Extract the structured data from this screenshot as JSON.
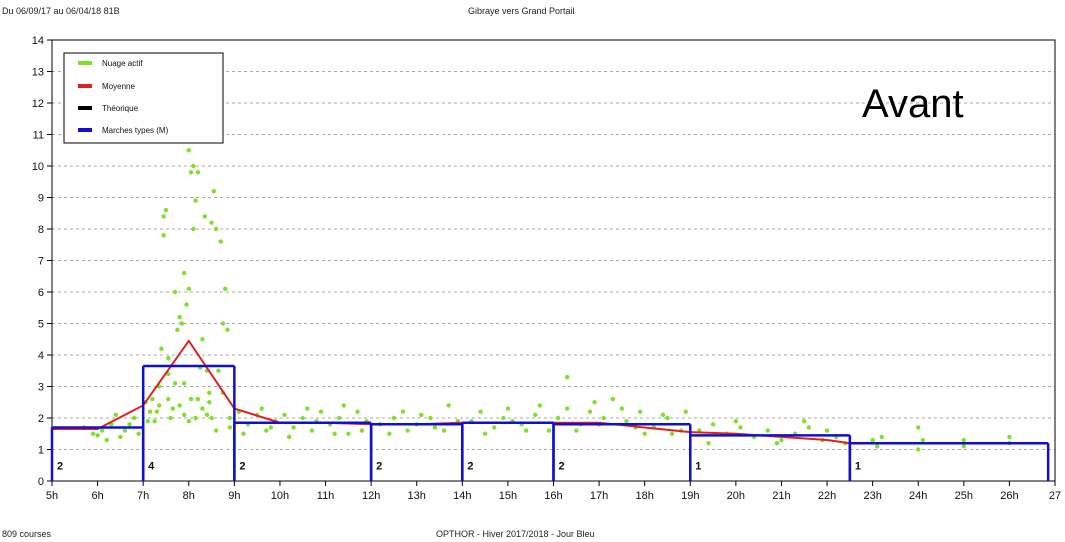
{
  "header": {
    "left": "Du 06/09/17 au 06/04/18 81B",
    "center": "Gibraye vers Grand Portail"
  },
  "footer": {
    "left": "809 courses",
    "center": "OPTHOR - Hiver 2017/2018 - Jour Bleu"
  },
  "annotation": "Avant",
  "colors": {
    "scatter": "#7ee02a",
    "moyenne": "#e02020",
    "theorique": "#000000",
    "marches": "#1010d0"
  },
  "chart_data": {
    "type": "scatter",
    "title": "Gibraye vers Grand Portail",
    "xlim": [
      5,
      27
    ],
    "ylim": [
      0,
      14
    ],
    "x_ticks": [
      "5h",
      "6h",
      "7h",
      "8h",
      "9h",
      "10h",
      "11h",
      "12h",
      "13h",
      "14h",
      "15h",
      "16h",
      "17h",
      "18h",
      "19h",
      "20h",
      "21h",
      "22h",
      "23h",
      "24h",
      "25h",
      "26h",
      "27"
    ],
    "y_ticks": [
      0,
      1,
      2,
      3,
      4,
      5,
      6,
      7,
      8,
      9,
      10,
      11,
      12,
      13,
      14
    ],
    "grid": "horizontal dashed",
    "legend": {
      "placement": "top-left",
      "entries": [
        {
          "label": "Nuage actif",
          "color_key": "scatter"
        },
        {
          "label": "Moyenne",
          "color_key": "moyenne"
        },
        {
          "label": "Théorique",
          "color_key": "theorique"
        },
        {
          "label": "Marches types (M)",
          "color_key": "marches"
        }
      ]
    },
    "series": [
      {
        "name": "Moyenne",
        "x": [
          5.0,
          6.0,
          7.0,
          8.0,
          9.0,
          10.0,
          11.0,
          12.0,
          13.0,
          14.0,
          15.0,
          16.0,
          17.0,
          18.0,
          19.0,
          20.0,
          21.0,
          22.0,
          22.5,
          23.0,
          26.8
        ],
        "y": [
          1.65,
          1.65,
          2.4,
          4.45,
          2.3,
          1.85,
          1.85,
          1.8,
          1.8,
          1.85,
          1.85,
          1.85,
          1.85,
          1.7,
          1.55,
          1.5,
          1.4,
          1.3,
          1.2,
          1.2,
          1.2
        ]
      },
      {
        "name": "Marches types (M)",
        "segments": [
          {
            "x_start": 5.0,
            "x_end": 7.0,
            "y": 1.7,
            "label": "2"
          },
          {
            "x_start": 7.0,
            "x_end": 9.0,
            "y": 3.65,
            "label": "4"
          },
          {
            "x_start": 9.0,
            "x_end": 12.0,
            "y": 1.85,
            "label": "2"
          },
          {
            "x_start": 12.0,
            "x_end": 14.0,
            "y": 1.8,
            "label": "2"
          },
          {
            "x_start": 14.0,
            "x_end": 16.0,
            "y": 1.85,
            "label": "2"
          },
          {
            "x_start": 16.0,
            "x_end": 19.0,
            "y": 1.8,
            "label": "2"
          },
          {
            "x_start": 19.0,
            "x_end": 22.5,
            "y": 1.45,
            "label": "1"
          },
          {
            "x_start": 22.5,
            "x_end": 26.85,
            "y": 1.2,
            "label": "1"
          }
        ]
      },
      {
        "name": "Nuage actif",
        "points": [
          [
            5.7,
            1.7
          ],
          [
            5.9,
            1.5
          ],
          [
            6.1,
            1.6
          ],
          [
            6.3,
            1.8
          ],
          [
            6.5,
            1.4
          ],
          [
            6.6,
            1.6
          ],
          [
            6.8,
            2.0
          ],
          [
            6.9,
            1.5
          ],
          [
            6.4,
            2.1
          ],
          [
            6.2,
            1.3
          ],
          [
            6.7,
            1.8
          ],
          [
            6.0,
            1.45
          ],
          [
            7.1,
            1.9
          ],
          [
            7.15,
            2.2
          ],
          [
            7.2,
            2.6
          ],
          [
            7.3,
            2.2
          ],
          [
            7.35,
            3.0
          ],
          [
            7.4,
            4.2
          ],
          [
            7.45,
            8.4
          ],
          [
            7.5,
            8.6
          ],
          [
            7.45,
            7.8
          ],
          [
            7.55,
            2.6
          ],
          [
            7.6,
            2.0
          ],
          [
            7.55,
            3.9
          ],
          [
            7.7,
            6.0
          ],
          [
            7.75,
            4.8
          ],
          [
            7.8,
            5.2
          ],
          [
            7.85,
            5.0
          ],
          [
            7.8,
            2.4
          ],
          [
            7.9,
            6.6
          ],
          [
            7.9,
            3.1
          ],
          [
            7.95,
            5.6
          ],
          [
            8.0,
            6.1
          ],
          [
            8.0,
            10.5
          ],
          [
            8.05,
            9.8
          ],
          [
            8.05,
            2.6
          ],
          [
            8.1,
            10.0
          ],
          [
            8.1,
            8.0
          ],
          [
            8.15,
            8.9
          ],
          [
            8.15,
            2.0
          ],
          [
            8.2,
            9.8
          ],
          [
            8.25,
            3.6
          ],
          [
            8.3,
            4.5
          ],
          [
            8.3,
            2.3
          ],
          [
            8.35,
            8.4
          ],
          [
            8.4,
            3.5
          ],
          [
            8.45,
            2.5
          ],
          [
            8.5,
            8.2
          ],
          [
            8.5,
            2.0
          ],
          [
            8.55,
            9.2
          ],
          [
            8.6,
            8.0
          ],
          [
            8.65,
            3.5
          ],
          [
            8.7,
            7.6
          ],
          [
            8.75,
            5.0
          ],
          [
            8.75,
            2.8
          ],
          [
            8.8,
            6.1
          ],
          [
            8.85,
            4.8
          ],
          [
            8.9,
            2.0
          ],
          [
            8.9,
            1.7
          ],
          [
            7.65,
            2.3
          ],
          [
            7.25,
            1.9
          ],
          [
            7.7,
            3.1
          ],
          [
            8.0,
            1.9
          ],
          [
            8.2,
            2.6
          ],
          [
            8.4,
            2.1
          ],
          [
            8.6,
            1.6
          ],
          [
            8.45,
            2.8
          ],
          [
            7.35,
            2.4
          ],
          [
            7.9,
            2.1
          ],
          [
            7.05,
            2.5
          ],
          [
            7.55,
            3.4
          ],
          [
            9.1,
            2.2
          ],
          [
            9.3,
            1.8
          ],
          [
            9.5,
            2.1
          ],
          [
            9.7,
            1.6
          ],
          [
            9.9,
            1.9
          ],
          [
            10.1,
            2.1
          ],
          [
            10.3,
            1.7
          ],
          [
            10.5,
            2.0
          ],
          [
            10.7,
            1.6
          ],
          [
            10.9,
            2.2
          ],
          [
            11.1,
            1.8
          ],
          [
            11.3,
            2.0
          ],
          [
            11.5,
            1.5
          ],
          [
            11.7,
            2.2
          ],
          [
            11.9,
            1.9
          ],
          [
            9.2,
            1.5
          ],
          [
            9.6,
            2.3
          ],
          [
            10.2,
            1.4
          ],
          [
            10.8,
            1.9
          ],
          [
            11.4,
            2.4
          ],
          [
            11.8,
            1.6
          ],
          [
            9.8,
            1.7
          ],
          [
            10.6,
            2.3
          ],
          [
            11.2,
            1.5
          ],
          [
            12.2,
            1.8
          ],
          [
            12.5,
            2.0
          ],
          [
            12.8,
            1.6
          ],
          [
            13.1,
            2.1
          ],
          [
            13.4,
            1.7
          ],
          [
            13.7,
            2.4
          ],
          [
            13.9,
            1.9
          ],
          [
            12.4,
            1.5
          ],
          [
            13.0,
            1.8
          ],
          [
            13.6,
            1.6
          ],
          [
            12.7,
            2.2
          ],
          [
            13.3,
            2.0
          ],
          [
            14.2,
            1.9
          ],
          [
            14.4,
            2.2
          ],
          [
            14.7,
            1.7
          ],
          [
            15.0,
            2.3
          ],
          [
            15.3,
            1.8
          ],
          [
            15.6,
            2.1
          ],
          [
            15.9,
            1.6
          ],
          [
            14.5,
            1.5
          ],
          [
            15.1,
            1.9
          ],
          [
            15.7,
            2.4
          ],
          [
            14.9,
            2.0
          ],
          [
            15.4,
            1.6
          ],
          [
            16.1,
            2.0
          ],
          [
            16.3,
            2.3
          ],
          [
            16.3,
            3.3
          ],
          [
            16.6,
            1.8
          ],
          [
            16.9,
            2.5
          ],
          [
            17.1,
            2.0
          ],
          [
            17.3,
            2.6
          ],
          [
            17.6,
            1.9
          ],
          [
            17.9,
            2.2
          ],
          [
            18.2,
            1.7
          ],
          [
            18.5,
            2.0
          ],
          [
            18.8,
            1.6
          ],
          [
            16.5,
            1.6
          ],
          [
            17.0,
            1.8
          ],
          [
            17.5,
            2.3
          ],
          [
            18.0,
            1.5
          ],
          [
            18.4,
            2.1
          ],
          [
            18.9,
            2.2
          ],
          [
            16.8,
            2.2
          ],
          [
            17.8,
            1.7
          ],
          [
            18.6,
            1.5
          ],
          [
            19.2,
            1.6
          ],
          [
            19.5,
            1.8
          ],
          [
            19.8,
            1.5
          ],
          [
            20.1,
            1.7
          ],
          [
            20.4,
            1.4
          ],
          [
            20.7,
            1.6
          ],
          [
            21.0,
            1.3
          ],
          [
            21.3,
            1.5
          ],
          [
            21.6,
            1.7
          ],
          [
            21.9,
            1.3
          ],
          [
            22.2,
            1.4
          ],
          [
            22.4,
            1.2
          ],
          [
            19.4,
            1.2
          ],
          [
            20.0,
            1.9
          ],
          [
            20.9,
            1.2
          ],
          [
            21.5,
            1.9
          ],
          [
            22.0,
            1.6
          ],
          [
            23.0,
            1.3
          ],
          [
            23.1,
            1.1
          ],
          [
            23.2,
            1.4
          ],
          [
            24.0,
            1.0
          ],
          [
            24.1,
            1.3
          ],
          [
            24.0,
            1.7
          ],
          [
            25.0,
            1.1
          ],
          [
            25.0,
            1.3
          ],
          [
            26.0,
            1.2
          ],
          [
            26.0,
            1.4
          ]
        ]
      }
    ]
  }
}
